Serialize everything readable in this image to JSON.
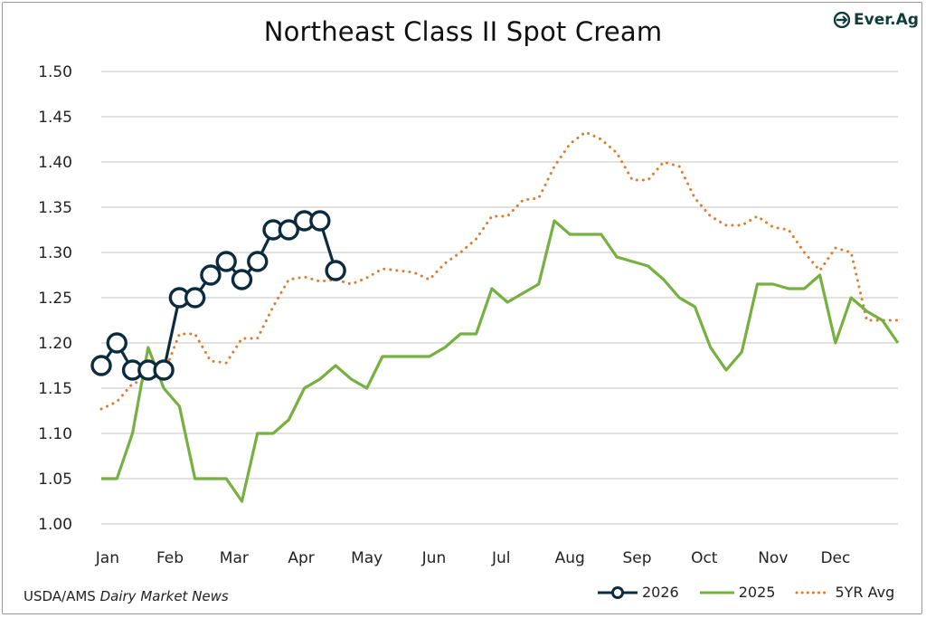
{
  "title": "Northeast Class II Spot Cream",
  "logo_text": "Ever.Ag",
  "source_prefix": "USDA/AMS ",
  "source_italic": "Dairy Market News",
  "colors": {
    "s2026": "#0d2b3e",
    "s2025": "#76b041",
    "avg": "#e07b30",
    "grid": "#d0d0d0",
    "logo": "#0f3d3a"
  },
  "chart_data": {
    "type": "line",
    "title": "Northeast Class II Spot Cream",
    "x_categories": [
      "Jan",
      "Feb",
      "Mar",
      "Apr",
      "May",
      "Jun",
      "Jul",
      "Aug",
      "Sep",
      "Oct",
      "Nov",
      "Dec"
    ],
    "x_unit": "week of year (0 = first week of Jan)",
    "ylim": [
      1.0,
      1.5
    ],
    "yticks": [
      "1.00",
      "1.05",
      "1.10",
      "1.15",
      "1.20",
      "1.25",
      "1.30",
      "1.35",
      "1.40",
      "1.45",
      "1.50"
    ],
    "grid": true,
    "legend_position": "bottom-right",
    "series": [
      {
        "name": "2026",
        "style": "line-with-circle-markers",
        "x": [
          0,
          1,
          2,
          3,
          4,
          5,
          6,
          7,
          8,
          9,
          10,
          11,
          12,
          13,
          14,
          15
        ],
        "y": [
          1.175,
          1.2,
          1.17,
          1.17,
          1.17,
          1.25,
          1.25,
          1.275,
          1.29,
          1.27,
          1.29,
          1.325,
          1.325,
          1.335,
          1.335,
          1.28
        ]
      },
      {
        "name": "2025",
        "style": "solid",
        "x": [
          0,
          1,
          2,
          3,
          4,
          5,
          6,
          7,
          8,
          9,
          10,
          11,
          12,
          13,
          14,
          15,
          16,
          17,
          18,
          19,
          20,
          21,
          22,
          23,
          24,
          25,
          26,
          27,
          28,
          29,
          30,
          31,
          32,
          33,
          34,
          35,
          36,
          37,
          38,
          39,
          40,
          41,
          42,
          43,
          44,
          45,
          46,
          47,
          48,
          49,
          50,
          51
        ],
        "y": [
          1.05,
          1.05,
          1.1,
          1.195,
          1.15,
          1.13,
          1.05,
          1.05,
          1.05,
          1.025,
          1.1,
          1.1,
          1.115,
          1.15,
          1.16,
          1.175,
          1.16,
          1.15,
          1.185,
          1.185,
          1.185,
          1.185,
          1.195,
          1.21,
          1.21,
          1.26,
          1.245,
          1.255,
          1.265,
          1.335,
          1.32,
          1.32,
          1.32,
          1.295,
          1.29,
          1.285,
          1.27,
          1.25,
          1.24,
          1.195,
          1.17,
          1.19,
          1.265,
          1.265,
          1.26,
          1.26,
          1.275,
          1.2,
          1.25,
          1.235,
          1.225,
          1.2
        ]
      },
      {
        "name": "5YR Avg",
        "style": "dotted",
        "x": [
          0,
          1,
          2,
          3,
          4,
          5,
          6,
          7,
          8,
          9,
          10,
          11,
          12,
          13,
          14,
          15,
          16,
          17,
          18,
          19,
          20,
          21,
          22,
          23,
          24,
          25,
          26,
          27,
          28,
          29,
          30,
          31,
          32,
          33,
          34,
          35,
          36,
          37,
          38,
          39,
          40,
          41,
          42,
          43,
          44,
          45,
          46,
          47,
          48,
          49,
          50,
          51
        ],
        "y": [
          1.127,
          1.135,
          1.155,
          1.16,
          1.165,
          1.21,
          1.21,
          1.18,
          1.178,
          1.205,
          1.205,
          1.24,
          1.27,
          1.273,
          1.268,
          1.27,
          1.265,
          1.272,
          1.282,
          1.28,
          1.278,
          1.27,
          1.288,
          1.3,
          1.315,
          1.34,
          1.34,
          1.358,
          1.36,
          1.395,
          1.42,
          1.433,
          1.425,
          1.41,
          1.38,
          1.38,
          1.4,
          1.395,
          1.36,
          1.34,
          1.33,
          1.33,
          1.34,
          1.328,
          1.325,
          1.3,
          1.28,
          1.305,
          1.3,
          1.225,
          1.225,
          1.225
        ]
      }
    ]
  }
}
